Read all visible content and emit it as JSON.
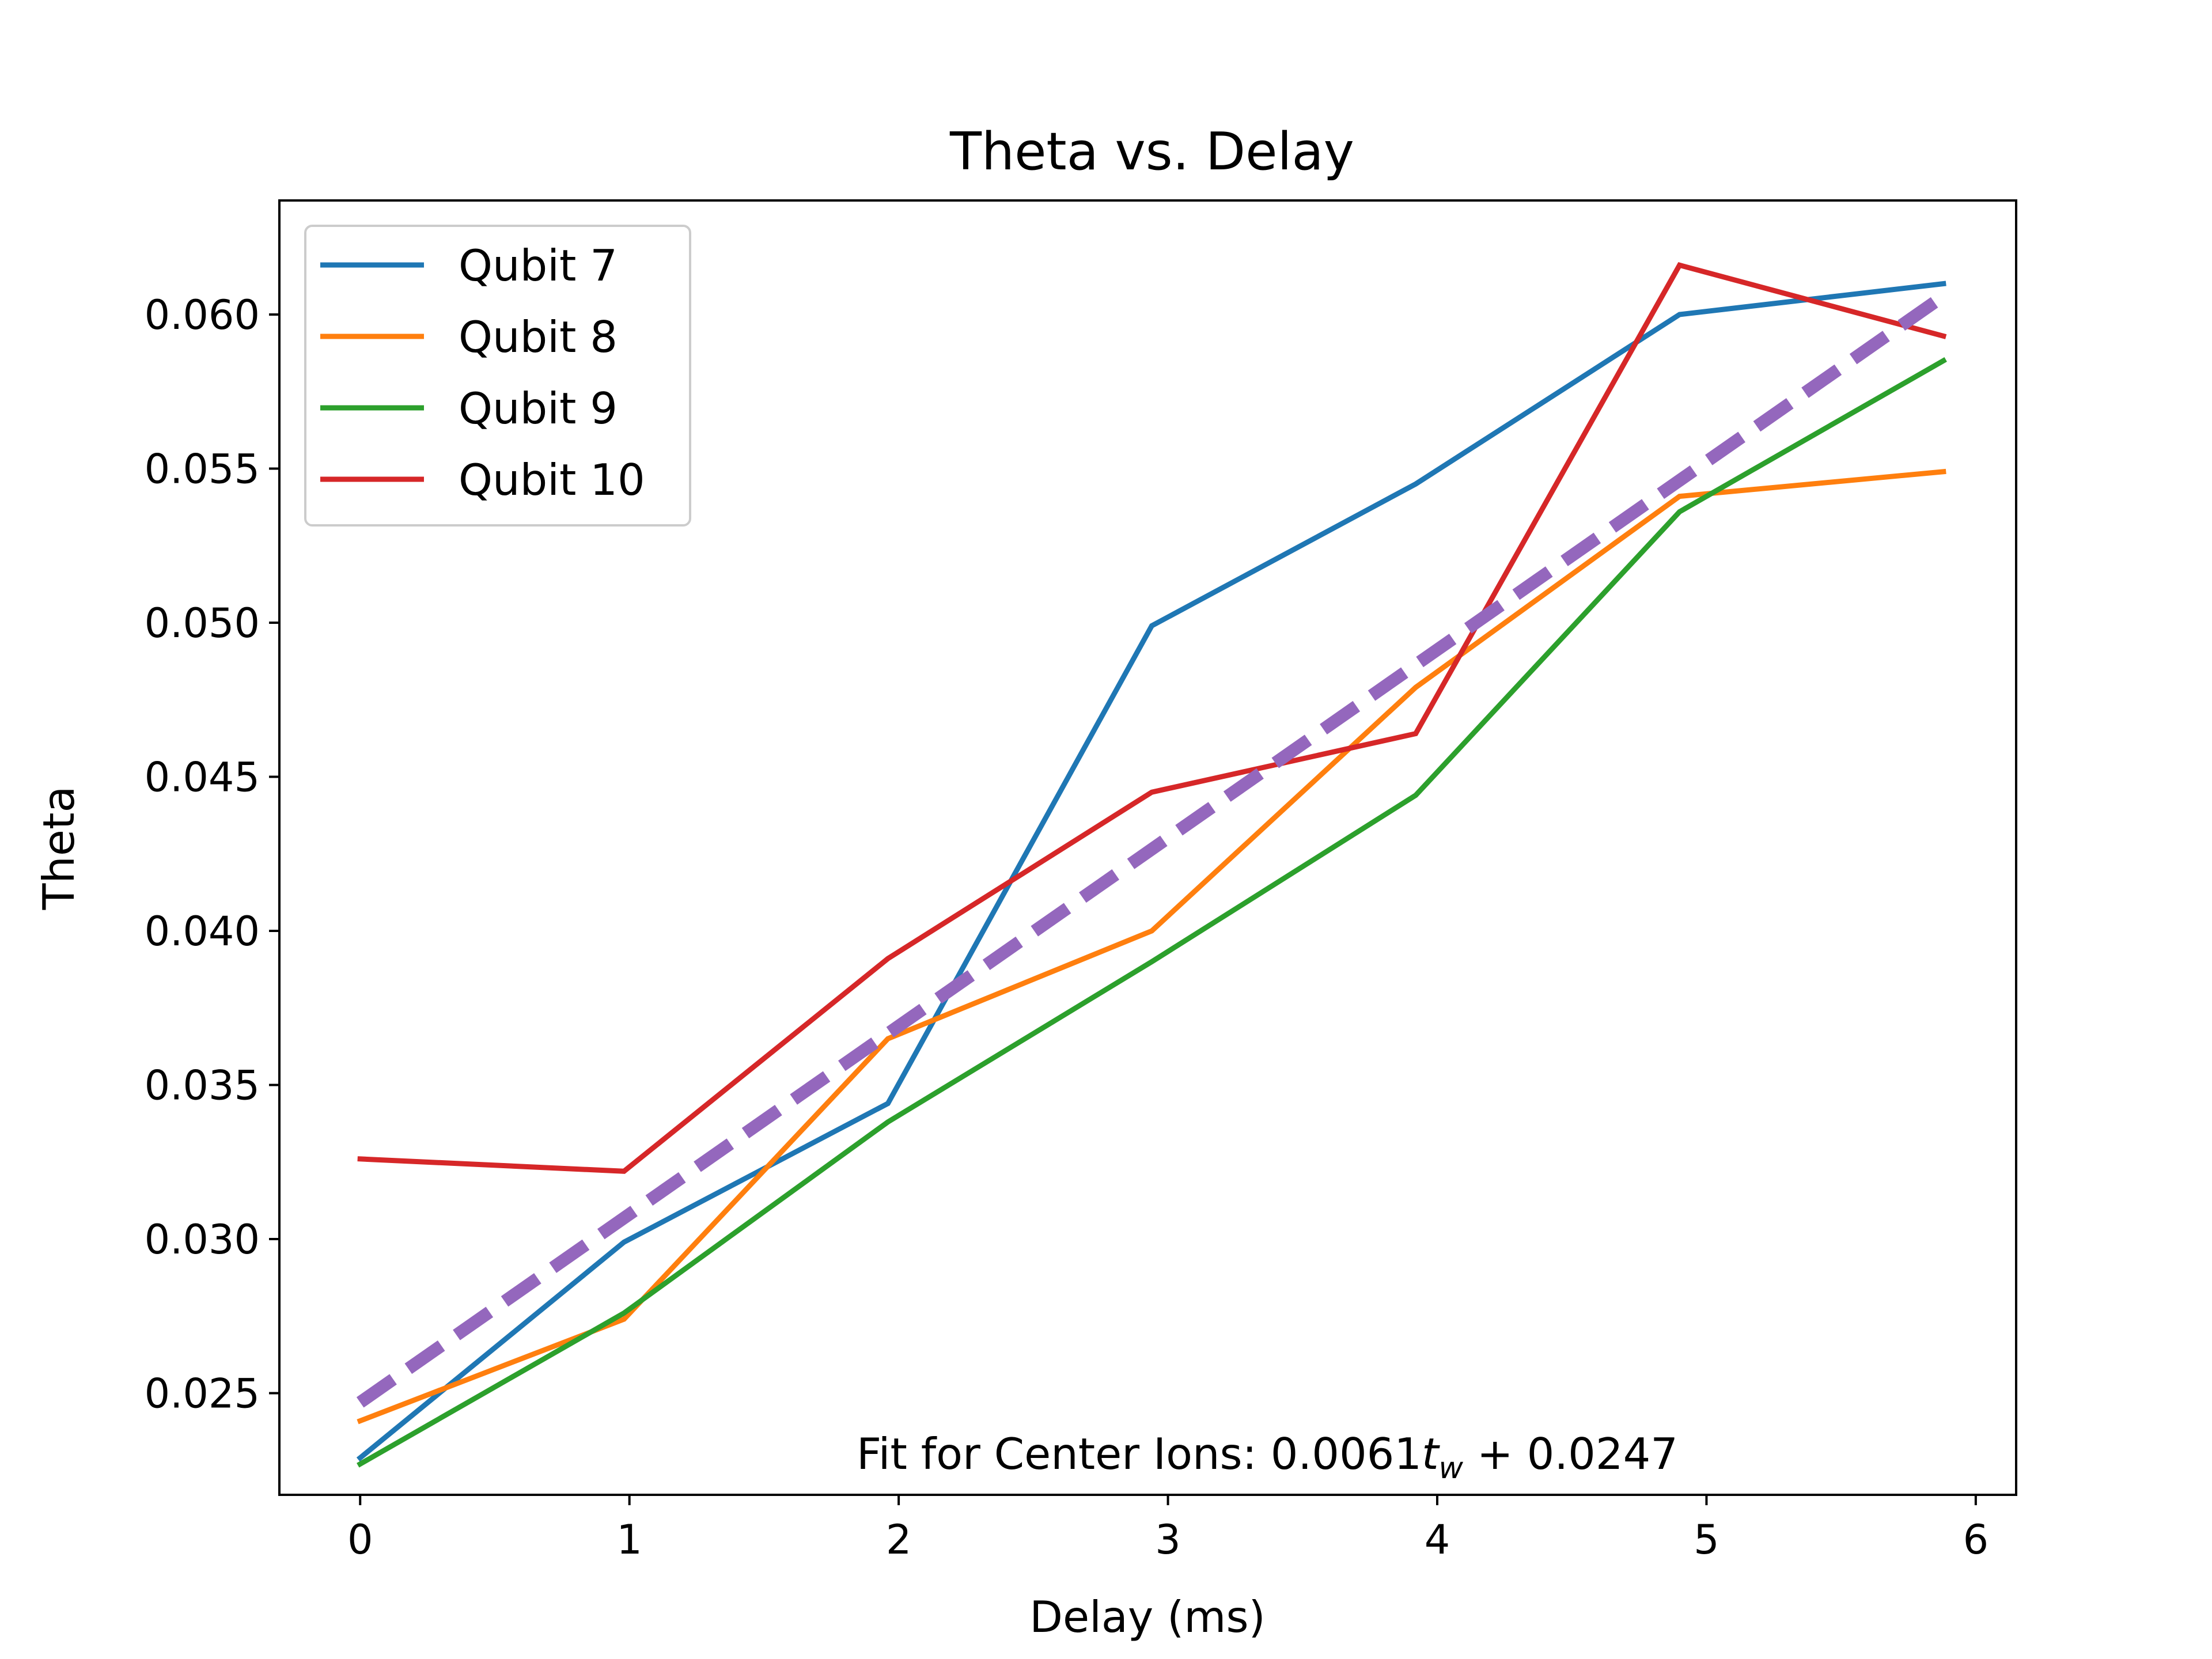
{
  "chart_data": {
    "type": "line",
    "title": "Theta vs. Delay",
    "xlabel": "Delay (ms)",
    "ylabel": "Theta",
    "xlim": [
      -0.3,
      6.15
    ],
    "ylim": [
      0.0217,
      0.0637
    ],
    "xticks": [
      0,
      1,
      2,
      3,
      4,
      5,
      6
    ],
    "xtick_labels": [
      "0",
      "1",
      "2",
      "3",
      "4",
      "5",
      "6"
    ],
    "yticks": [
      0.025,
      0.03,
      0.035,
      0.04,
      0.045,
      0.05,
      0.055,
      0.06
    ],
    "ytick_labels": [
      "0.025",
      "0.030",
      "0.035",
      "0.040",
      "0.045",
      "0.050",
      "0.055",
      "0.060"
    ],
    "grid": false,
    "legend_position": "upper-left",
    "x": [
      0,
      0.98,
      1.96,
      2.94,
      3.92,
      4.9,
      5.88
    ],
    "series": [
      {
        "name": "Qubit 7",
        "color": "#1f77b4",
        "values": [
          0.0229,
          0.0299,
          0.0344,
          0.0499,
          0.0545,
          0.06,
          0.061
        ]
      },
      {
        "name": "Qubit 8",
        "color": "#ff7f0e",
        "values": [
          0.0241,
          0.0274,
          0.0365,
          0.04,
          0.0479,
          0.0541,
          0.0549
        ]
      },
      {
        "name": "Qubit 9",
        "color": "#2ca02c",
        "values": [
          0.0227,
          0.0276,
          0.0338,
          0.039,
          0.0444,
          0.0536,
          0.0585
        ]
      },
      {
        "name": "Qubit 10",
        "color": "#d62728",
        "values": [
          0.0326,
          0.0322,
          0.0391,
          0.0445,
          0.0464,
          0.0616,
          0.0593
        ]
      }
    ],
    "fit_line": {
      "color": "#9467bd",
      "style": "dashed",
      "x": [
        0,
        5.88
      ],
      "values": [
        0.0247,
        0.0606
      ]
    },
    "annotation": {
      "prefix": "Fit for Center Ions: 0.0061",
      "var": "t",
      "sub": "w",
      "suffix": " + 0.0247"
    }
  }
}
